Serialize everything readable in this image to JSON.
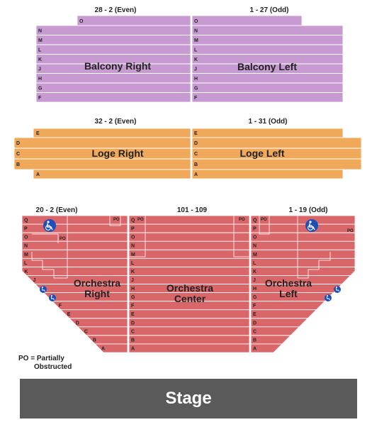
{
  "balcony": {
    "right": {
      "name": "Balcony Right",
      "range": "28 - 2 (Even)"
    },
    "left": {
      "name": "Balcony Left",
      "range": "1 - 27 (Odd)"
    },
    "rows": [
      "O",
      "N",
      "M",
      "L",
      "K",
      "J",
      "H",
      "G",
      "F"
    ]
  },
  "loge": {
    "right": {
      "name": "Loge Right",
      "range": "32 - 2 (Even)"
    },
    "left": {
      "name": "Loge Left",
      "range": "1 - 31 (Odd)"
    },
    "rows": [
      "E",
      "D",
      "C",
      "B",
      "A"
    ]
  },
  "orchestra": {
    "right": {
      "name_line1": "Orchestra",
      "name_line2": "Right",
      "range": "20 - 2 (Even)"
    },
    "center": {
      "name_line1": "Orchestra",
      "name_line2": "Center",
      "range": "101 - 109"
    },
    "left": {
      "name_line1": "Orchestra",
      "name_line2": "Left",
      "range": "1 - 19 (Odd)"
    },
    "rows": [
      "Q",
      "P",
      "O",
      "N",
      "M",
      "L",
      "K",
      "J",
      "H",
      "G",
      "F",
      "E",
      "D",
      "C",
      "B",
      "A"
    ],
    "po_label": "PO",
    "wheelchair_icon": "wheelchair-icon"
  },
  "legend": {
    "line1": "PO = Partially",
    "line2": "Obstructed"
  },
  "stage": {
    "label": "Stage"
  },
  "colors": {
    "balcony": "#c79bd1",
    "loge": "#f0a85a",
    "orchestra": "#d9676a",
    "stage": "#5a5a5a",
    "accessible": "#1e4fb8"
  }
}
